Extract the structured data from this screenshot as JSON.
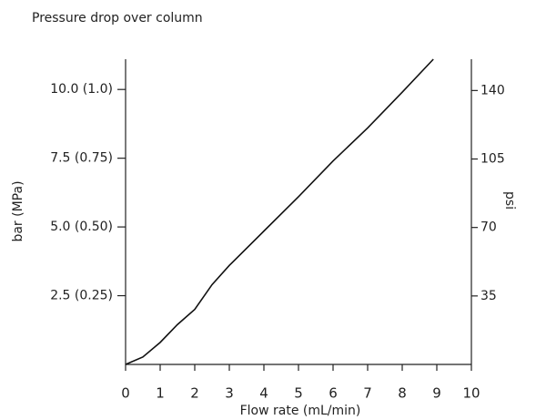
{
  "chart_data": {
    "type": "line",
    "title": "Pressure drop over column",
    "x_label": "Flow rate (mL/min)",
    "y_label": "bar (MPa)",
    "y2_label": "psi",
    "x": [
      0,
      0.5,
      1,
      1.5,
      2,
      2.5,
      3,
      4,
      5,
      6,
      7,
      8,
      8.9
    ],
    "series": [
      {
        "color": "#111111",
        "values": [
          0,
          0.27,
          0.8,
          1.45,
          2.0,
          2.9,
          3.6,
          4.85,
          6.1,
          7.4,
          8.6,
          9.9,
          11.1
        ]
      }
    ],
    "xlim": [
      0,
      10
    ],
    "xticks": [
      0,
      1,
      2,
      3,
      4,
      5,
      6,
      7,
      8,
      9,
      10
    ],
    "ylim": [
      0,
      11.1
    ],
    "yticks": [
      {
        "value": 2.5,
        "label": "2.5 (0.25)"
      },
      {
        "value": 5,
        "label": "5.0 (0.50)"
      },
      {
        "value": 7.5,
        "label": "7.5 (0.75)"
      },
      {
        "value": 10,
        "label": "10.0 (1.0)"
      }
    ],
    "y2lim": [
      0,
      156
    ],
    "y2ticks": [
      35,
      70,
      105,
      140
    ],
    "grid": false
  }
}
